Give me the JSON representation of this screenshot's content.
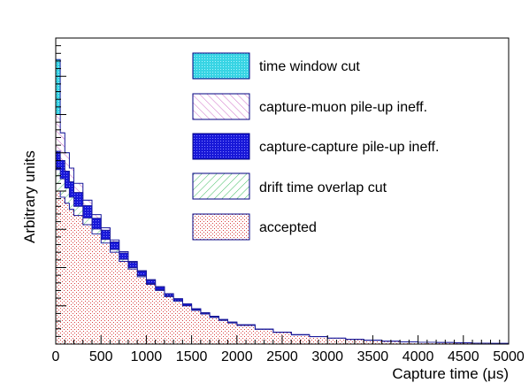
{
  "chart_data": {
    "type": "area",
    "stacked": true,
    "histogram": true,
    "xlabel": "Capture time (μs)",
    "ylabel": "Arbitrary units",
    "xlim": [
      0,
      5000
    ],
    "ylim": [
      0,
      1.0
    ],
    "grid": false,
    "legend_position": "top-right",
    "x_ticks": [
      "0",
      "500",
      "1000",
      "1500",
      "2000",
      "2500",
      "3000",
      "3500",
      "4000",
      "4500",
      "5000"
    ],
    "x": [
      0,
      50,
      100,
      150,
      200,
      300,
      400,
      500,
      600,
      700,
      800,
      900,
      1000,
      1100,
      1200,
      1300,
      1400,
      1500,
      1600,
      1700,
      1800,
      1900,
      2000,
      2200,
      2400,
      2600,
      2800,
      3000,
      3200,
      3400,
      3600,
      3800,
      4000,
      4200,
      4400,
      4600,
      4800,
      5000
    ],
    "series": [
      {
        "name": "accepted",
        "color": "#e07070",
        "values": [
          0.5,
          0.48,
          0.46,
          0.44,
          0.42,
          0.39,
          0.36,
          0.33,
          0.3,
          0.27,
          0.245,
          0.22,
          0.195,
          0.175,
          0.155,
          0.14,
          0.125,
          0.11,
          0.098,
          0.087,
          0.077,
          0.069,
          0.061,
          0.048,
          0.038,
          0.03,
          0.024,
          0.019,
          0.015,
          0.012,
          0.009,
          0.007,
          0.006,
          0.005,
          0.004,
          0.003,
          0.002,
          0.0015
        ]
      },
      {
        "name": "drift time overlap cut",
        "color": "#4cc06a",
        "values": [
          0.07,
          0.06,
          0.05,
          0.04,
          0.03,
          0.022,
          0.016,
          0.012,
          0.009,
          0.007,
          0.005,
          0.004,
          0.003,
          0.0025,
          0.002,
          0.0015,
          0.001,
          0.001,
          0.001,
          0.0008,
          0.0006,
          0.0005,
          0.0004,
          0.0003,
          0.0002,
          0.0002,
          0.0001,
          0.0001,
          0.0001,
          0.0001,
          0,
          0,
          0,
          0,
          0,
          0,
          0,
          0
        ]
      },
      {
        "name": "capture-capture pile-up ineff.",
        "color": "#1a1ae0",
        "values": [
          0.06,
          0.06,
          0.055,
          0.05,
          0.045,
          0.04,
          0.035,
          0.03,
          0.025,
          0.021,
          0.017,
          0.014,
          0.011,
          0.009,
          0.007,
          0.006,
          0.005,
          0.004,
          0.0035,
          0.003,
          0.0025,
          0.002,
          0.0015,
          0.001,
          0.0008,
          0.0006,
          0.0004,
          0.0003,
          0.0002,
          0.0002,
          0.0001,
          0.0001,
          0.0001,
          0,
          0,
          0,
          0,
          0
        ]
      },
      {
        "name": "capture-muon pile-up ineff.",
        "color": "#d070c8",
        "values": [
          0.12,
          0.09,
          0.06,
          0.045,
          0.03,
          0.018,
          0.012,
          0.008,
          0.006,
          0.004,
          0.003,
          0.002,
          0.0015,
          0.001,
          0.001,
          0.0008,
          0.0006,
          0.0005,
          0.0004,
          0.0003,
          0.0002,
          0.0002,
          0.0001,
          0.0001,
          0.0001,
          0,
          0,
          0,
          0,
          0,
          0,
          0,
          0,
          0,
          0,
          0,
          0,
          0
        ]
      },
      {
        "name": "time window cut",
        "color": "#40d8e8",
        "values": [
          0.18,
          0,
          0,
          0,
          0,
          0,
          0,
          0,
          0,
          0,
          0,
          0,
          0,
          0,
          0,
          0,
          0,
          0,
          0,
          0,
          0,
          0,
          0,
          0,
          0,
          0,
          0,
          0,
          0,
          0,
          0,
          0,
          0,
          0,
          0,
          0,
          0,
          0
        ]
      }
    ]
  }
}
